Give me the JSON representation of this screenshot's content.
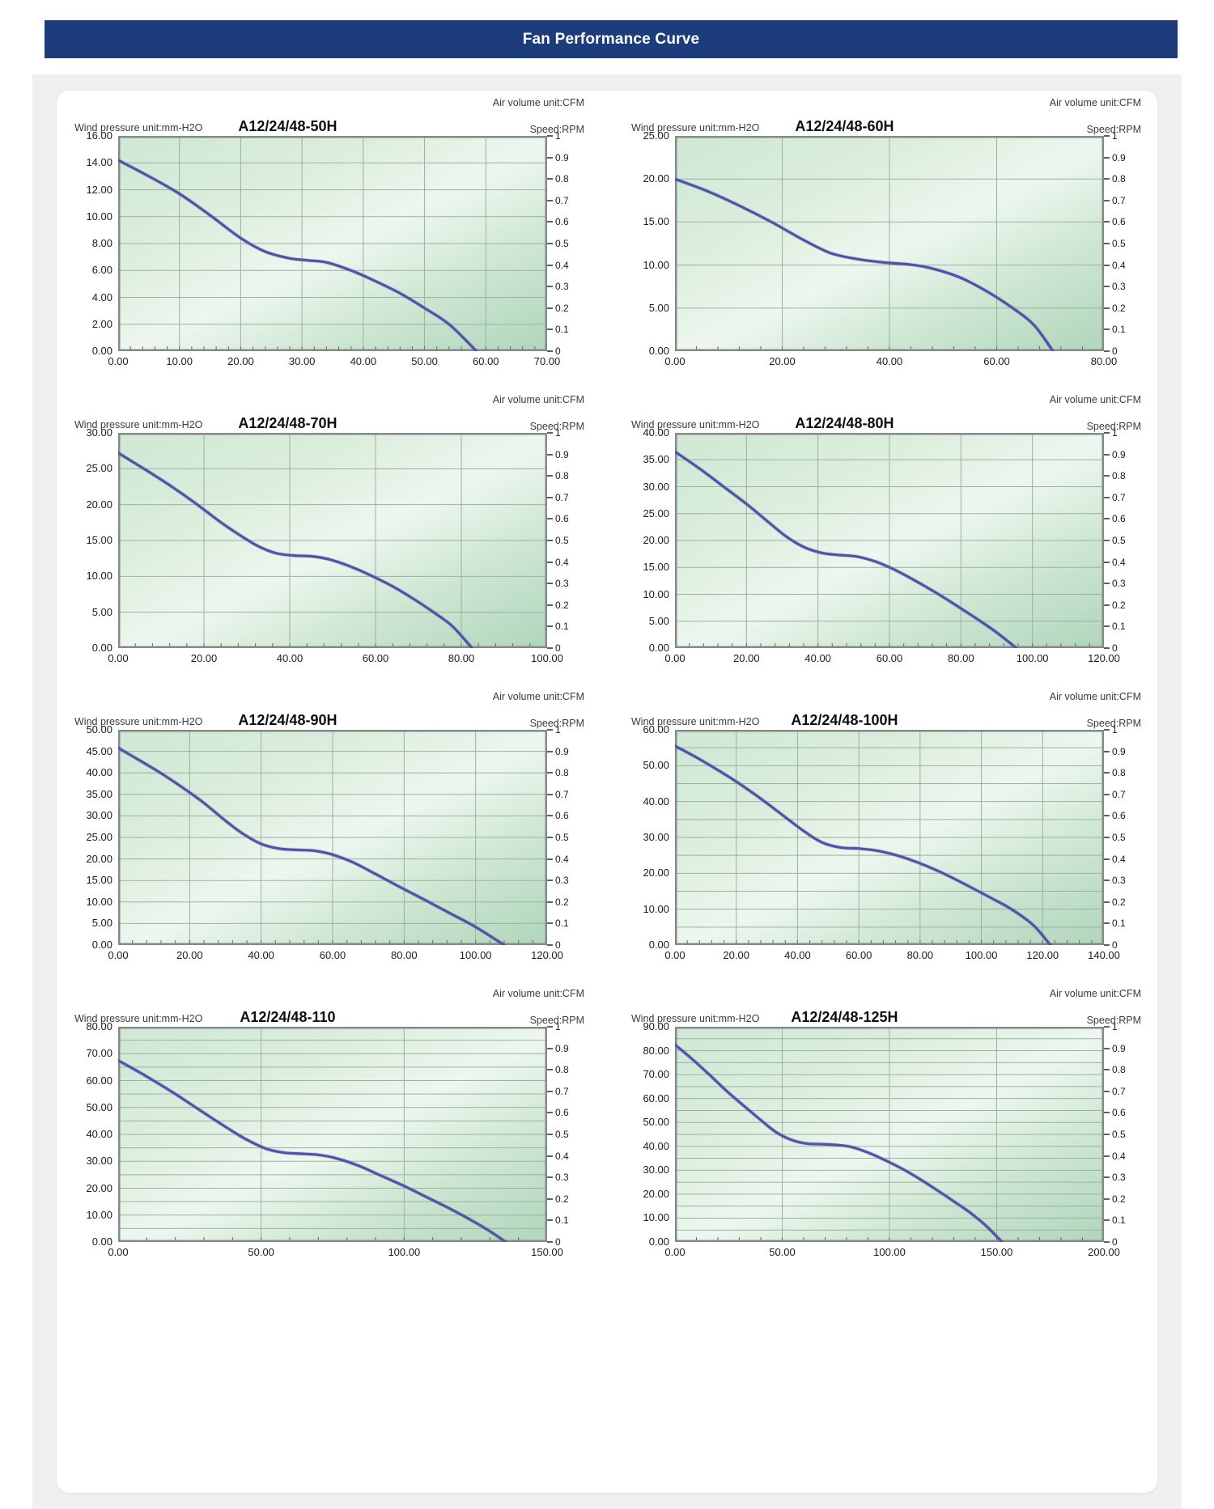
{
  "page": {
    "header_title": "Fan Performance Curve"
  },
  "units": {
    "pressure": "Wind pressure unit:mm-H2O",
    "volume": "Air volume unit:CFM",
    "speed": "Speed:RPM"
  },
  "right_axis_ticks": [
    "1",
    "0.9",
    "0.8",
    "0.7",
    "0.6",
    "0.5",
    "0.4",
    "0.3",
    "0.2",
    "0.1",
    "0"
  ],
  "colors": {
    "header_bg": "#1d3c7c",
    "header_text": "#ffffff",
    "panel_bg": "#efefef",
    "card_bg": "#ffffff",
    "grid_line": "#9bb1a2",
    "plot_border": "#84898a",
    "curve": "#5153a7",
    "curve_halo": "#8d80c4",
    "minor_tick": "#67706a",
    "label": "#1c1c1c",
    "unit_label": "#3a3a3a",
    "plot_gradient": [
      "#cfe7d4",
      "#dceede",
      "#edf7ef",
      "#cde6d2",
      "#b0d6bb"
    ]
  },
  "chart_data": [
    {
      "type": "line",
      "title": "A12/24/48-50H",
      "x_max": 70,
      "x_grid_step": 10,
      "x_minor_tick_step": 2,
      "y_max": 16,
      "y_grid_step": 2,
      "x_ticks": [
        "0.00",
        "10.00",
        "20.00",
        "30.00",
        "40.00",
        "50.00",
        "60.00",
        "70.00"
      ],
      "y_ticks": [
        "16.00",
        "14.00",
        "12.00",
        "10.00",
        "8.00",
        "6.00",
        "4.00",
        "2.00",
        "0.00"
      ],
      "right_axis": {
        "min": 0,
        "max": 1,
        "step": 0.1
      },
      "points": [
        [
          0,
          14.2
        ],
        [
          5,
          13.0
        ],
        [
          10,
          11.7
        ],
        [
          15,
          10.1
        ],
        [
          20,
          8.4
        ],
        [
          24,
          7.4
        ],
        [
          28,
          6.9
        ],
        [
          31,
          6.75
        ],
        [
          34,
          6.6
        ],
        [
          38,
          6.0
        ],
        [
          42,
          5.2
        ],
        [
          46,
          4.3
        ],
        [
          50,
          3.2
        ],
        [
          54,
          2.0
        ],
        [
          58.5,
          0
        ]
      ]
    },
    {
      "type": "line",
      "title": "A12/24/48-60H",
      "x_max": 80,
      "x_grid_step": 20,
      "x_minor_tick_step": 4,
      "y_max": 25,
      "y_grid_step": 5,
      "x_ticks": [
        "0.00",
        "20.00",
        "40.00",
        "60.00",
        "80.00"
      ],
      "y_ticks": [
        "25.00",
        "20.00",
        "15.00",
        "10.00",
        "5.00",
        "0.00"
      ],
      "right_axis": {
        "min": 0,
        "max": 1,
        "step": 0.1
      },
      "points": [
        [
          0,
          20.0
        ],
        [
          6,
          18.6
        ],
        [
          12,
          16.9
        ],
        [
          18,
          15.0
        ],
        [
          24,
          12.9
        ],
        [
          29,
          11.4
        ],
        [
          34,
          10.7
        ],
        [
          39,
          10.3
        ],
        [
          44,
          10.05
        ],
        [
          48,
          9.6
        ],
        [
          53,
          8.6
        ],
        [
          58,
          7.0
        ],
        [
          63,
          5.0
        ],
        [
          67,
          3.0
        ],
        [
          70.5,
          0
        ]
      ]
    },
    {
      "type": "line",
      "title": "A12/24/48-70H",
      "x_max": 100,
      "x_grid_step": 20,
      "x_minor_tick_step": 4,
      "y_max": 30,
      "y_grid_step": 5,
      "x_ticks": [
        "0.00",
        "20.00",
        "40.00",
        "60.00",
        "80.00",
        "100.00"
      ],
      "y_ticks": [
        "30.00",
        "25.00",
        "20.00",
        "15.00",
        "10.00",
        "5.00",
        "0.00"
      ],
      "right_axis": {
        "min": 0,
        "max": 1,
        "step": 0.1
      },
      "points": [
        [
          0,
          27.2
        ],
        [
          6,
          25.0
        ],
        [
          12,
          22.7
        ],
        [
          18,
          20.2
        ],
        [
          24,
          17.5
        ],
        [
          29,
          15.5
        ],
        [
          33,
          14.1
        ],
        [
          37,
          13.2
        ],
        [
          41,
          12.9
        ],
        [
          45,
          12.8
        ],
        [
          49,
          12.4
        ],
        [
          54,
          11.4
        ],
        [
          59,
          10.1
        ],
        [
          64,
          8.6
        ],
        [
          69,
          6.8
        ],
        [
          74,
          4.8
        ],
        [
          78,
          3.0
        ],
        [
          82.5,
          0
        ]
      ]
    },
    {
      "type": "line",
      "title": "A12/24/48-80H",
      "x_max": 120,
      "x_grid_step": 20,
      "x_minor_tick_step": 4,
      "y_max": 40,
      "y_grid_step": 5,
      "x_ticks": [
        "0.00",
        "20.00",
        "40.00",
        "60.00",
        "80.00",
        "100.00",
        "120.00"
      ],
      "y_ticks": [
        "40.00",
        "35.00",
        "30.00",
        "25.00",
        "20.00",
        "15.00",
        "10.00",
        "5.00",
        "0.00"
      ],
      "right_axis": {
        "min": 0,
        "max": 1,
        "step": 0.1
      },
      "points": [
        [
          0,
          36.5
        ],
        [
          7,
          33.3
        ],
        [
          14,
          29.8
        ],
        [
          20,
          26.8
        ],
        [
          26,
          23.5
        ],
        [
          31,
          20.8
        ],
        [
          36,
          18.8
        ],
        [
          41,
          17.7
        ],
        [
          46,
          17.3
        ],
        [
          51,
          17.0
        ],
        [
          56,
          16.1
        ],
        [
          61,
          14.7
        ],
        [
          67,
          12.6
        ],
        [
          73,
          10.3
        ],
        [
          79,
          7.8
        ],
        [
          85,
          5.2
        ],
        [
          90,
          2.9
        ],
        [
          95.5,
          0
        ]
      ]
    },
    {
      "type": "line",
      "title": "A12/24/48-90H",
      "x_max": 120,
      "x_grid_step": 20,
      "x_minor_tick_step": 4,
      "y_max": 50,
      "y_grid_step": 5,
      "x_ticks": [
        "0.00",
        "20.00",
        "40.00",
        "60.00",
        "80.00",
        "100.00",
        "120.00"
      ],
      "y_ticks": [
        "50.00",
        "45.00",
        "40.00",
        "35.00",
        "30.00",
        "25.00",
        "20.00",
        "15.00",
        "10.00",
        "5.00",
        "0.00"
      ],
      "right_axis": {
        "min": 0,
        "max": 1,
        "step": 0.1
      },
      "points": [
        [
          0,
          45.8
        ],
        [
          6,
          42.9
        ],
        [
          12,
          39.9
        ],
        [
          18,
          36.6
        ],
        [
          24,
          33.0
        ],
        [
          30,
          28.9
        ],
        [
          35,
          25.8
        ],
        [
          40,
          23.5
        ],
        [
          45,
          22.4
        ],
        [
          50,
          22.1
        ],
        [
          55,
          21.9
        ],
        [
          60,
          21.0
        ],
        [
          66,
          19.1
        ],
        [
          72,
          16.5
        ],
        [
          79,
          13.4
        ],
        [
          86,
          10.4
        ],
        [
          93,
          7.3
        ],
        [
          100,
          4.2
        ],
        [
          108,
          0
        ]
      ]
    },
    {
      "type": "line",
      "title": "A12/24/48-100H",
      "x_max": 140,
      "x_grid_step": 20,
      "x_minor_tick_step": 4,
      "y_max": 60,
      "y_grid_step": 5,
      "x_ticks": [
        "0.00",
        "20.00",
        "40.00",
        "60.00",
        "80.00",
        "100.00",
        "120.00",
        "140.00"
      ],
      "y_ticks": [
        "60.00",
        "50.00",
        "40.00",
        "30.00",
        "20.00",
        "10.00",
        "0.00"
      ],
      "right_axis": {
        "min": 0,
        "max": 1,
        "step": 0.1
      },
      "points": [
        [
          0,
          55.5
        ],
        [
          7,
          52.3
        ],
        [
          14,
          48.8
        ],
        [
          21,
          45.0
        ],
        [
          28,
          40.8
        ],
        [
          35,
          36.3
        ],
        [
          42,
          31.8
        ],
        [
          48,
          28.6
        ],
        [
          54,
          27.2
        ],
        [
          60,
          26.9
        ],
        [
          66,
          26.3
        ],
        [
          72,
          25.1
        ],
        [
          79,
          23.1
        ],
        [
          87,
          20.2
        ],
        [
          95,
          16.8
        ],
        [
          103,
          13.2
        ],
        [
          110,
          9.9
        ],
        [
          117,
          5.5
        ],
        [
          122.5,
          0
        ]
      ]
    },
    {
      "type": "line",
      "title": "A12/24/48-110",
      "x_max": 150,
      "x_grid_step": 50,
      "x_minor_tick_step": 10,
      "y_max": 80,
      "y_grid_step": 5,
      "x_ticks": [
        "0.00",
        "50.00",
        "100.00",
        "150.00"
      ],
      "y_ticks": [
        "80.00",
        "70.00",
        "60.00",
        "50.00",
        "40.00",
        "30.00",
        "20.00",
        "10.00",
        "0.00"
      ],
      "right_axis": {
        "min": 0,
        "max": 1,
        "step": 0.1
      },
      "points": [
        [
          0,
          67.5
        ],
        [
          10,
          61.5
        ],
        [
          20,
          55.0
        ],
        [
          30,
          48.0
        ],
        [
          38,
          42.5
        ],
        [
          45,
          38.0
        ],
        [
          52,
          34.6
        ],
        [
          58,
          33.2
        ],
        [
          64,
          32.8
        ],
        [
          70,
          32.4
        ],
        [
          76,
          31.2
        ],
        [
          84,
          28.4
        ],
        [
          92,
          24.6
        ],
        [
          100,
          20.8
        ],
        [
          108,
          16.6
        ],
        [
          116,
          12.4
        ],
        [
          124,
          7.8
        ],
        [
          130,
          4.0
        ],
        [
          135.5,
          0
        ]
      ]
    },
    {
      "type": "line",
      "title": "A12/24/48-125H",
      "x_max": 200,
      "x_grid_step": 50,
      "x_minor_tick_step": 10,
      "y_max": 90,
      "y_grid_step": 5,
      "x_ticks": [
        "0.00",
        "50.00",
        "100.00",
        "150.00",
        "200.00"
      ],
      "y_ticks": [
        "90.00",
        "80.00",
        "70.00",
        "60.00",
        "50.00",
        "40.00",
        "30.00",
        "20.00",
        "10.00",
        "0.00"
      ],
      "right_axis": {
        "min": 0,
        "max": 1,
        "step": 0.1
      },
      "points": [
        [
          0,
          82.5
        ],
        [
          8,
          76.5
        ],
        [
          16,
          70.0
        ],
        [
          24,
          63.2
        ],
        [
          32,
          57.0
        ],
        [
          40,
          51.0
        ],
        [
          47,
          46.0
        ],
        [
          54,
          42.8
        ],
        [
          61,
          41.2
        ],
        [
          68,
          40.9
        ],
        [
          75,
          40.6
        ],
        [
          82,
          39.8
        ],
        [
          90,
          37.4
        ],
        [
          98,
          34.2
        ],
        [
          106,
          30.6
        ],
        [
          114,
          26.4
        ],
        [
          122,
          21.8
        ],
        [
          130,
          17.0
        ],
        [
          138,
          12.0
        ],
        [
          145,
          6.8
        ],
        [
          152.5,
          0
        ]
      ]
    }
  ]
}
